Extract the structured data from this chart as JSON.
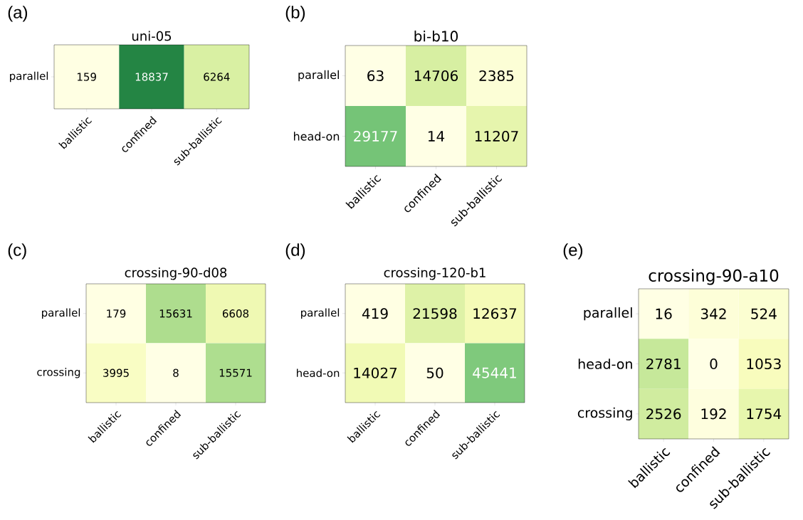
{
  "chart_data": [
    {
      "type": "heatmap",
      "title": "uni-05",
      "annotations": [
        "(a)"
      ],
      "categories": [
        "ballistic",
        "confined",
        "sub-ballistic"
      ],
      "y_categories": [
        "parallel"
      ],
      "cells": [
        [
          159,
          18837,
          6264
        ]
      ],
      "data_labels": true
    },
    {
      "type": "heatmap",
      "title": "bi-b10",
      "annotations": [
        "(b)"
      ],
      "categories": [
        "ballistic",
        "confined",
        "sub-ballistic"
      ],
      "y_categories": [
        "parallel",
        "head-on"
      ],
      "cells": [
        [
          63,
          14706,
          2385
        ],
        [
          29177,
          14,
          11207
        ]
      ],
      "data_labels": true
    },
    {
      "type": "heatmap",
      "title": "crossing-90-d08",
      "annotations": [
        "(c)"
      ],
      "categories": [
        "ballistic",
        "confined",
        "sub-ballistic"
      ],
      "y_categories": [
        "parallel",
        "crossing"
      ],
      "cells": [
        [
          179,
          15631,
          6608
        ],
        [
          3995,
          8,
          15571
        ]
      ],
      "data_labels": true
    },
    {
      "type": "heatmap",
      "title": "crossing-120-b1",
      "annotations": [
        "(d)"
      ],
      "categories": [
        "ballistic",
        "confined",
        "sub-ballistic"
      ],
      "y_categories": [
        "parallel",
        "head-on"
      ],
      "cells": [
        [
          419,
          21598,
          12637
        ],
        [
          14027,
          50,
          45441
        ]
      ],
      "data_labels": true
    },
    {
      "type": "heatmap",
      "title": "crossing-90-a10",
      "annotations": [
        "(e)"
      ],
      "categories": [
        "ballistic",
        "confined",
        "sub-ballistic"
      ],
      "y_categories": [
        "parallel",
        "head-on",
        "crossing"
      ],
      "cells": [
        [
          16,
          342,
          524
        ],
        [
          2781,
          0,
          1053
        ],
        [
          2526,
          192,
          1754
        ]
      ],
      "data_labels": true
    }
  ]
}
